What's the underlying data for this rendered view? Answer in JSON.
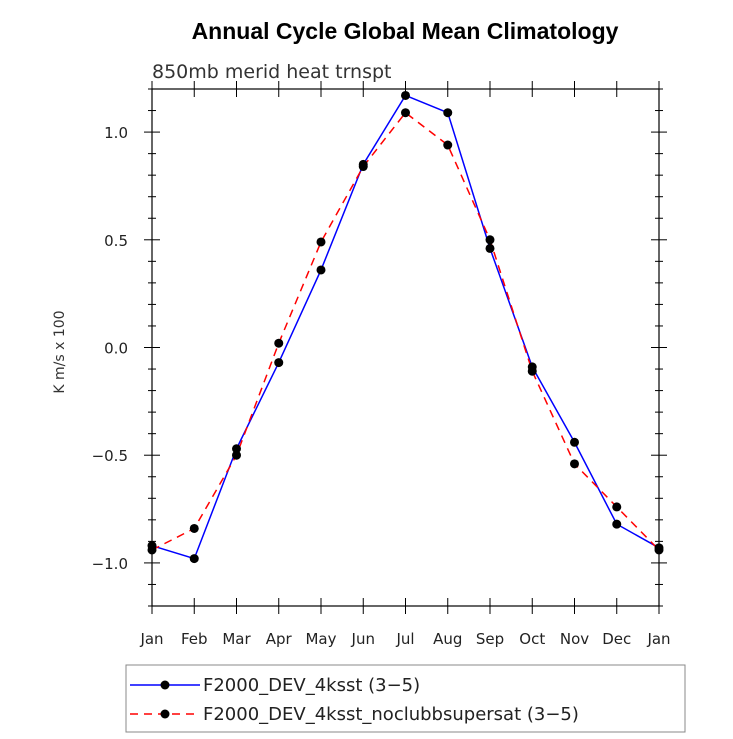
{
  "chart_data": {
    "type": "line",
    "title": "Annual Cycle Global Mean Climatology",
    "subtitle": "850mb merid heat trnspt",
    "ylabel": "K m/s x 100",
    "xlabel": "",
    "categories": [
      "Jan",
      "Feb",
      "Mar",
      "Apr",
      "May",
      "Jun",
      "Jul",
      "Aug",
      "Sep",
      "Oct",
      "Nov",
      "Dec",
      "Jan"
    ],
    "yticks": [
      "1.0",
      "0.5",
      "0.0",
      "−0.5",
      "−1.0"
    ],
    "ytick_values": [
      1.0,
      0.5,
      0.0,
      -0.5,
      -1.0
    ],
    "ylim": [
      -1.2,
      1.2
    ],
    "grid": false,
    "legend_position": "bottom",
    "series": [
      {
        "name": "F2000_DEV_4ksst (3−5)",
        "color": "#0000ff",
        "dash": "solid",
        "values": [
          -0.92,
          -0.98,
          -0.47,
          -0.07,
          0.36,
          0.85,
          1.17,
          1.09,
          0.46,
          -0.09,
          -0.44,
          -0.82,
          -0.93
        ]
      },
      {
        "name": "F2000_DEV_4ksst_noclubbsupersat (3−5)",
        "color": "#ff0000",
        "dash": "dashed",
        "values": [
          -0.94,
          -0.84,
          -0.5,
          0.02,
          0.49,
          0.84,
          1.09,
          0.94,
          0.5,
          -0.11,
          -0.54,
          -0.74,
          -0.94
        ]
      }
    ]
  }
}
